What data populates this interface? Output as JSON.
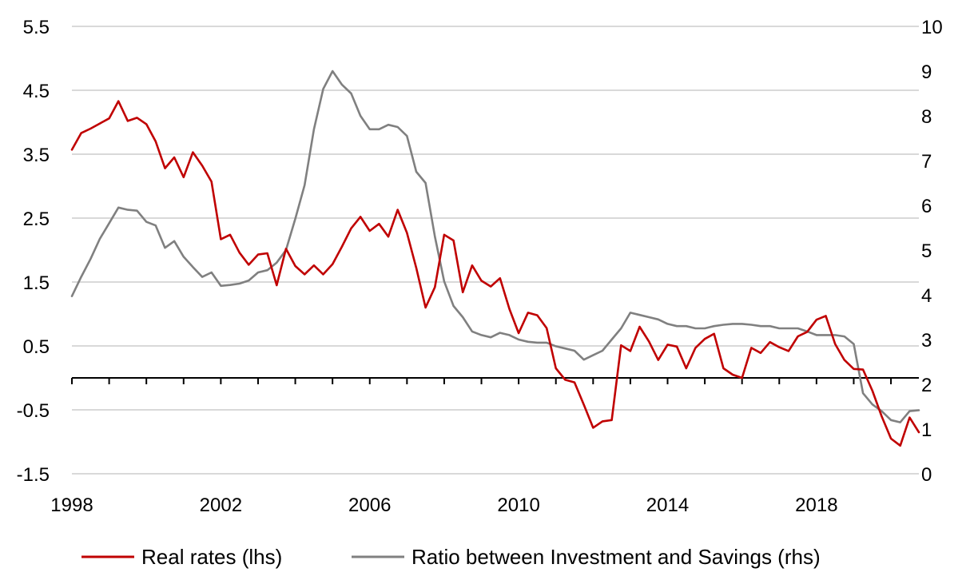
{
  "chart_data": {
    "type": "line",
    "title": "",
    "grid": "horizontal",
    "legend_position": "bottom",
    "x_ticks": [
      "1998",
      "2002",
      "2006",
      "2010",
      "2014",
      "2018"
    ],
    "x_range": [
      1998,
      2020.75
    ],
    "y_left": {
      "range": [
        -1.5,
        5.5
      ],
      "ticks": [
        "5.5",
        "4.5",
        "3.5",
        "2.5",
        "1.5",
        "0.5",
        "-0.5",
        "-1.5"
      ]
    },
    "y_right": {
      "range": [
        0,
        10
      ],
      "ticks": [
        "10",
        "9",
        "8",
        "7",
        "6",
        "5",
        "4",
        "3",
        "2",
        "1",
        "0"
      ]
    },
    "series": [
      {
        "name": "Real rates (lhs)",
        "axis": "left",
        "color": "#c00000",
        "x": [
          1998.0,
          1998.25,
          1998.5,
          1998.75,
          1999.0,
          1999.25,
          1999.5,
          1999.75,
          2000.0,
          2000.25,
          2000.5,
          2000.75,
          2001.0,
          2001.25,
          2001.5,
          2001.75,
          2002.0,
          2002.25,
          2002.5,
          2002.75,
          2003.0,
          2003.25,
          2003.5,
          2003.75,
          2004.0,
          2004.25,
          2004.5,
          2004.75,
          2005.0,
          2005.25,
          2005.5,
          2005.75,
          2006.0,
          2006.25,
          2006.5,
          2006.75,
          2007.0,
          2007.25,
          2007.5,
          2007.75,
          2008.0,
          2008.25,
          2008.5,
          2008.75,
          2009.0,
          2009.25,
          2009.5,
          2009.75,
          2010.0,
          2010.25,
          2010.5,
          2010.75,
          2011.0,
          2011.25,
          2011.5,
          2011.75,
          2012.0,
          2012.25,
          2012.5,
          2012.75,
          2013.0,
          2013.25,
          2013.5,
          2013.75,
          2014.0,
          2014.25,
          2014.5,
          2014.75,
          2015.0,
          2015.25,
          2015.5,
          2015.75,
          2016.0,
          2016.25,
          2016.5,
          2016.75,
          2017.0,
          2017.25,
          2017.5,
          2017.75,
          2018.0,
          2018.25,
          2018.5,
          2018.75,
          2019.0,
          2019.25,
          2019.5,
          2019.75,
          2020.0,
          2020.25,
          2020.5,
          2020.75
        ],
        "y": [
          3.57,
          3.83,
          3.9,
          3.98,
          4.06,
          4.33,
          4.02,
          4.07,
          3.97,
          3.7,
          3.28,
          3.45,
          3.14,
          3.53,
          3.32,
          3.07,
          2.17,
          2.24,
          1.96,
          1.77,
          1.93,
          1.95,
          1.45,
          2.02,
          1.75,
          1.62,
          1.76,
          1.62,
          1.78,
          2.05,
          2.34,
          2.52,
          2.3,
          2.41,
          2.21,
          2.63,
          2.27,
          1.72,
          1.1,
          1.42,
          2.24,
          2.15,
          1.34,
          1.76,
          1.52,
          1.43,
          1.56,
          1.08,
          0.7,
          1.02,
          0.98,
          0.78,
          0.15,
          -0.03,
          -0.07,
          -0.42,
          -0.78,
          -0.68,
          -0.66,
          0.51,
          0.42,
          0.8,
          0.57,
          0.28,
          0.52,
          0.49,
          0.15,
          0.47,
          0.61,
          0.69,
          0.15,
          0.05,
          0.0,
          0.47,
          0.39,
          0.56,
          0.48,
          0.42,
          0.65,
          0.72,
          0.91,
          0.97,
          0.53,
          0.28,
          0.14,
          0.13,
          -0.2,
          -0.6,
          -0.95,
          -1.06,
          -0.62,
          -0.85
        ]
      },
      {
        "name": "Ratio between Investment and Savings (rhs)",
        "axis": "right",
        "color": "#808080",
        "x": [
          1998.0,
          1998.25,
          1998.5,
          1998.75,
          1999.0,
          1999.25,
          1999.5,
          1999.75,
          2000.0,
          2000.25,
          2000.5,
          2000.75,
          2001.0,
          2001.25,
          2001.5,
          2001.75,
          2002.0,
          2002.25,
          2002.5,
          2002.75,
          2003.0,
          2003.25,
          2003.5,
          2003.75,
          2004.0,
          2004.25,
          2004.5,
          2004.75,
          2005.0,
          2005.25,
          2005.5,
          2005.75,
          2006.0,
          2006.25,
          2006.5,
          2006.75,
          2007.0,
          2007.25,
          2007.5,
          2007.75,
          2008.0,
          2008.25,
          2008.5,
          2008.75,
          2009.0,
          2009.25,
          2009.5,
          2009.75,
          2010.0,
          2010.25,
          2010.5,
          2010.75,
          2011.0,
          2011.25,
          2011.5,
          2011.75,
          2012.0,
          2012.25,
          2012.5,
          2012.75,
          2013.0,
          2013.25,
          2013.5,
          2013.75,
          2014.0,
          2014.25,
          2014.5,
          2014.75,
          2015.0,
          2015.25,
          2015.5,
          2015.75,
          2016.0,
          2016.25,
          2016.5,
          2016.75,
          2017.0,
          2017.25,
          2017.5,
          2017.75,
          2018.0,
          2018.25,
          2018.5,
          2018.75,
          2019.0,
          2019.25,
          2019.5,
          2019.75,
          2020.0,
          2020.25,
          2020.5,
          2020.75
        ],
        "y": [
          3.97,
          4.4,
          4.8,
          5.25,
          5.6,
          5.95,
          5.9,
          5.88,
          5.63,
          5.55,
          5.05,
          5.2,
          4.85,
          4.62,
          4.4,
          4.5,
          4.2,
          4.22,
          4.25,
          4.32,
          4.5,
          4.55,
          4.72,
          5.0,
          5.7,
          6.45,
          7.7,
          8.6,
          9.0,
          8.7,
          8.5,
          8.0,
          7.7,
          7.7,
          7.8,
          7.75,
          7.55,
          6.75,
          6.5,
          5.3,
          4.3,
          3.75,
          3.5,
          3.18,
          3.1,
          3.05,
          3.15,
          3.1,
          3.0,
          2.95,
          2.93,
          2.93,
          2.85,
          2.8,
          2.75,
          2.55,
          2.65,
          2.75,
          3.0,
          3.25,
          3.6,
          3.55,
          3.5,
          3.45,
          3.35,
          3.3,
          3.3,
          3.25,
          3.25,
          3.3,
          3.33,
          3.35,
          3.35,
          3.33,
          3.3,
          3.3,
          3.25,
          3.25,
          3.25,
          3.18,
          3.1,
          3.1,
          3.1,
          3.07,
          2.9,
          1.8,
          1.55,
          1.4,
          1.2,
          1.15,
          1.4,
          1.42
        ]
      }
    ]
  }
}
